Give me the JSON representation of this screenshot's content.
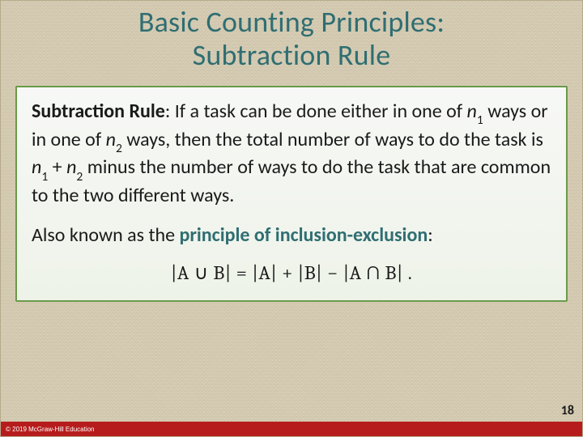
{
  "title_line1": "Basic Counting Principles:",
  "title_line2": "Subtraction Rule",
  "rule_label": "Subtraction Rule",
  "rule_sep": ": ",
  "rule_body_a": "If a task can be done either in one of ",
  "n1": "n",
  "sub1": "1",
  "rule_body_b": " ways or in one of  ",
  "n2": "n",
  "sub2": "2",
  "rule_body_c": " ways, then the total number of ways to do the task is  ",
  "n1b": "n",
  "sub1b": "1",
  "plus": " + ",
  "n2b": "n",
  "sub2b": "2",
  "rule_body_d": " minus the number of ways  to do the task that are common to the two different ways.",
  "also_a": "Also known as the ",
  "principle": "principle of inclusion-exclusion",
  "also_colon": ":",
  "formula": "|A ∪ B| = |A| + |B| − |A ∩ B| .",
  "page_number": "18",
  "copyright": "© 2019 McGraw-Hill Education",
  "colors": {
    "title": "#2f6e72",
    "box_border": "#6a9a4a",
    "box_bg_top": "#f7f8f6",
    "box_bg_bottom": "#eef3e9",
    "footer": "#b71c1c",
    "body_text": "#1a1a1a",
    "background": "#d8cfb8"
  }
}
